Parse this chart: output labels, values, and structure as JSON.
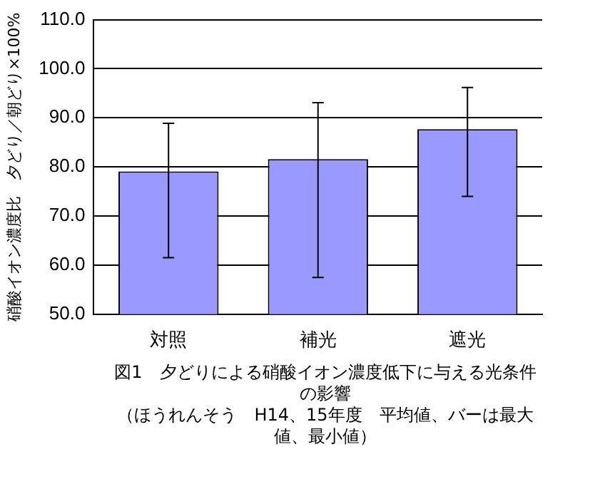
{
  "chart_data": {
    "type": "bar",
    "title": "図1　夕どりによる硝酸イオン濃度低下に与える光条件の影響",
    "subtitle": "（ほうれんそう　H14、15年度　平均値、バーは最大値、最小値）",
    "ylabel": "硝酸イオン濃度比　夕どり／朝どり×100%",
    "categories": [
      "対照",
      "補光",
      "遮光"
    ],
    "values": [
      79.1,
      81.6,
      87.7
    ],
    "color": "#9999ff",
    "errors": [
      [
        61.5,
        88.9
      ],
      [
        57.5,
        93.1
      ],
      [
        74.0,
        96.2
      ]
    ],
    "ylim": [
      50,
      110
    ],
    "yticks": [
      {
        "value": 50,
        "label": "50.0"
      },
      {
        "value": 60,
        "label": "60.0"
      },
      {
        "value": 70,
        "label": "70.0"
      },
      {
        "value": 80,
        "label": "80.0"
      },
      {
        "value": 90,
        "label": "90.0"
      },
      {
        "value": 100,
        "label": "100.0"
      },
      {
        "value": 110,
        "label": "110.0"
      }
    ],
    "grid": "y",
    "legend": false
  }
}
